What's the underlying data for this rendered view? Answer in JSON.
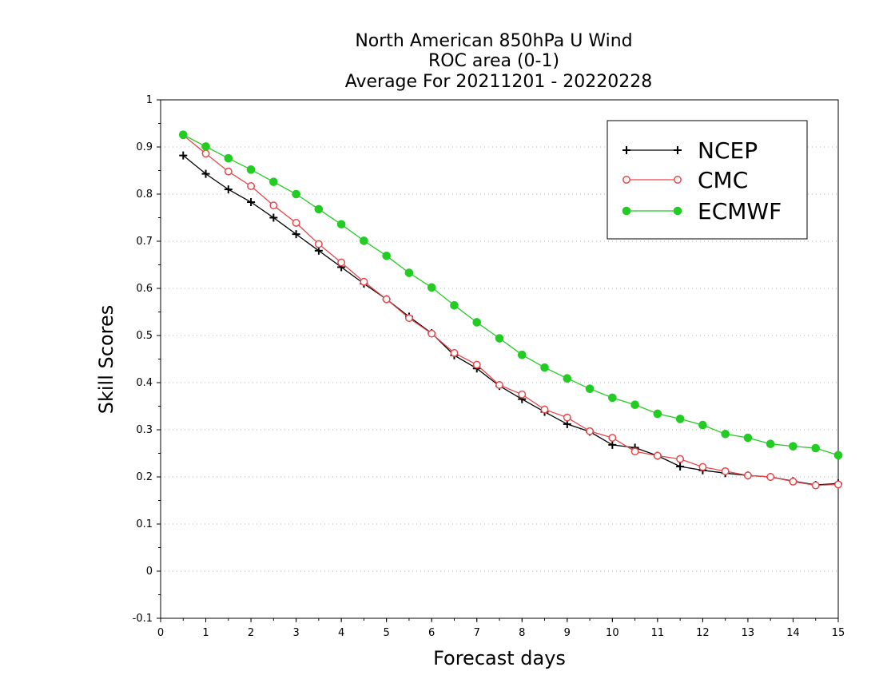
{
  "chart_data": {
    "type": "line",
    "title": [
      "North American 850hPa U Wind",
      "ROC area (0-1)",
      "Average For 20211201 - 20220228"
    ],
    "xlabel": "Forecast days",
    "ylabel": "Skill Scores",
    "xlim": [
      0,
      15
    ],
    "ylim": [
      -0.1,
      1
    ],
    "xticks": [
      0,
      1,
      2,
      3,
      4,
      5,
      6,
      7,
      8,
      9,
      10,
      11,
      12,
      13,
      14,
      15
    ],
    "yticks": [
      -0.1,
      0,
      0.1,
      0.2,
      0.3,
      0.4,
      0.5,
      0.6,
      0.7,
      0.8,
      0.9,
      1
    ],
    "ytick_labels": [
      "-0.1",
      "0",
      "0.1",
      "0.2",
      "0.3",
      "0.4",
      "0.5",
      "0.6",
      "0.7",
      "0.8",
      "0.9",
      "1"
    ],
    "xtick_labels": [
      "0",
      "1",
      "2",
      "3",
      "4",
      "5",
      "6",
      "7",
      "8",
      "9",
      "10",
      "11",
      "12",
      "13",
      "14",
      "15"
    ],
    "grid": "horizontal-dotted",
    "legend_position": "top-right",
    "x": [
      0.5,
      1,
      1.5,
      2,
      2.5,
      3,
      3.5,
      4,
      4.5,
      5,
      5.5,
      6,
      6.5,
      7,
      7.5,
      8,
      8.5,
      9,
      9.5,
      10,
      10.5,
      11,
      11.5,
      12,
      12.5,
      13,
      13.5,
      14,
      14.5,
      15
    ],
    "series": [
      {
        "name": "NCEP",
        "color": "#000000",
        "marker": "plus",
        "values": [
          0.882,
          0.843,
          0.81,
          0.783,
          0.75,
          0.715,
          0.68,
          0.645,
          0.61,
          0.577,
          0.54,
          0.505,
          0.458,
          0.43,
          0.393,
          0.365,
          0.338,
          0.312,
          0.296,
          0.268,
          0.262,
          0.245,
          0.222,
          0.214,
          0.208,
          0.203,
          0.2,
          0.191,
          0.183,
          0.186
        ]
      },
      {
        "name": "CMC",
        "color": "#e8474a",
        "marker": "open-circle",
        "values": [
          0.925,
          0.886,
          0.848,
          0.817,
          0.776,
          0.739,
          0.694,
          0.655,
          0.614,
          0.577,
          0.537,
          0.504,
          0.463,
          0.438,
          0.395,
          0.375,
          0.343,
          0.326,
          0.297,
          0.283,
          0.254,
          0.245,
          0.238,
          0.221,
          0.212,
          0.203,
          0.2,
          0.19,
          0.182,
          0.184
        ]
      },
      {
        "name": "ECMWF",
        "color": "#22cc22",
        "marker": "filled-circle",
        "values": [
          0.926,
          0.901,
          0.876,
          0.852,
          0.826,
          0.8,
          0.768,
          0.736,
          0.701,
          0.669,
          0.633,
          0.602,
          0.564,
          0.528,
          0.494,
          0.459,
          0.432,
          0.409,
          0.387,
          0.368,
          0.353,
          0.334,
          0.323,
          0.31,
          0.291,
          0.283,
          0.27,
          0.265,
          0.261,
          0.246
        ]
      }
    ]
  }
}
